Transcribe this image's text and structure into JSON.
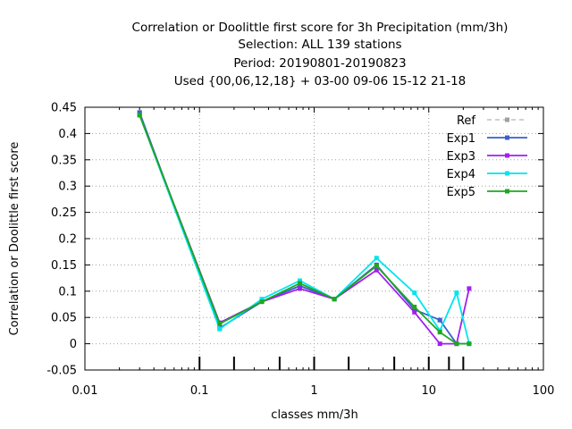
{
  "chart_data": {
    "type": "line",
    "title_lines": [
      "Correlation or Doolittle first score  for 3h Precipitation (mm/3h)",
      "Selection: ALL    139 stations",
      "Period: 20190801-20190823",
      "Used {00,06,12,18} + 03-00 09-06 15-12 21-18"
    ],
    "xlabel": "classes mm/3h",
    "ylabel": "Correlation or Doolittle first score",
    "x_scale": "log",
    "xlim": [
      0.01,
      100
    ],
    "ylim": [
      -0.05,
      0.45
    ],
    "x_ticks": [
      {
        "value": 0.01,
        "label": "0.01"
      },
      {
        "value": 0.1,
        "label": "0.1"
      },
      {
        "value": 1,
        "label": "1"
      },
      {
        "value": 10,
        "label": "10"
      },
      {
        "value": 100,
        "label": "100"
      }
    ],
    "y_ticks": [
      {
        "value": -0.05,
        "label": "-0.05"
      },
      {
        "value": 0,
        "label": "0"
      },
      {
        "value": 0.05,
        "label": "0.05"
      },
      {
        "value": 0.1,
        "label": "0.1"
      },
      {
        "value": 0.15,
        "label": "0.15"
      },
      {
        "value": 0.2,
        "label": "0.2"
      },
      {
        "value": 0.25,
        "label": "0.25"
      },
      {
        "value": 0.3,
        "label": "0.3"
      },
      {
        "value": 0.35,
        "label": "0.35"
      },
      {
        "value": 0.4,
        "label": "0.4"
      },
      {
        "value": 0.45,
        "label": "0.45"
      }
    ],
    "class_markers": [
      0.1,
      0.2,
      0.5,
      1,
      2,
      5,
      10,
      15,
      20
    ],
    "grid": true,
    "legend_position": "top-right",
    "series": [
      {
        "name": "Ref",
        "color": "#a0a0a0",
        "dashed": true,
        "x": [
          0.03,
          0.15,
          0.35,
          0.75,
          1.5,
          3.5,
          7.5,
          12.5,
          17.5,
          22.5
        ],
        "y": [
          0.44,
          0.03,
          0.08,
          0.11,
          0.085,
          0.15,
          0.065,
          0.045,
          0.0,
          0.0
        ]
      },
      {
        "name": "Exp1",
        "color": "#3a5fcd",
        "dashed": false,
        "x": [
          0.03,
          0.15,
          0.35,
          0.75,
          1.5,
          3.5,
          7.5,
          12.5,
          17.5,
          22.5
        ],
        "y": [
          0.44,
          0.03,
          0.08,
          0.11,
          0.085,
          0.15,
          0.065,
          0.045,
          0.0,
          0.0
        ]
      },
      {
        "name": "Exp3",
        "color": "#a020f0",
        "dashed": false,
        "x": [
          0.03,
          0.15,
          0.35,
          0.75,
          1.5,
          3.5,
          7.5,
          12.5,
          17.5,
          22.5
        ],
        "y": [
          0.435,
          0.04,
          0.08,
          0.105,
          0.085,
          0.14,
          0.06,
          0.0,
          0.0,
          0.105
        ]
      },
      {
        "name": "Exp4",
        "color": "#00e5ee",
        "dashed": false,
        "x": [
          0.03,
          0.15,
          0.35,
          0.75,
          1.5,
          3.5,
          7.5,
          12.5,
          17.5,
          22.5
        ],
        "y": [
          0.435,
          0.028,
          0.085,
          0.12,
          0.085,
          0.163,
          0.097,
          0.025,
          0.097,
          0.0
        ]
      },
      {
        "name": "Exp5",
        "color": "#1ea81e",
        "dashed": false,
        "x": [
          0.03,
          0.15,
          0.35,
          0.75,
          1.5,
          3.5,
          7.5,
          12.5,
          17.5,
          22.5
        ],
        "y": [
          0.435,
          0.038,
          0.08,
          0.115,
          0.085,
          0.148,
          0.07,
          0.022,
          0.0,
          0.0
        ]
      }
    ]
  }
}
